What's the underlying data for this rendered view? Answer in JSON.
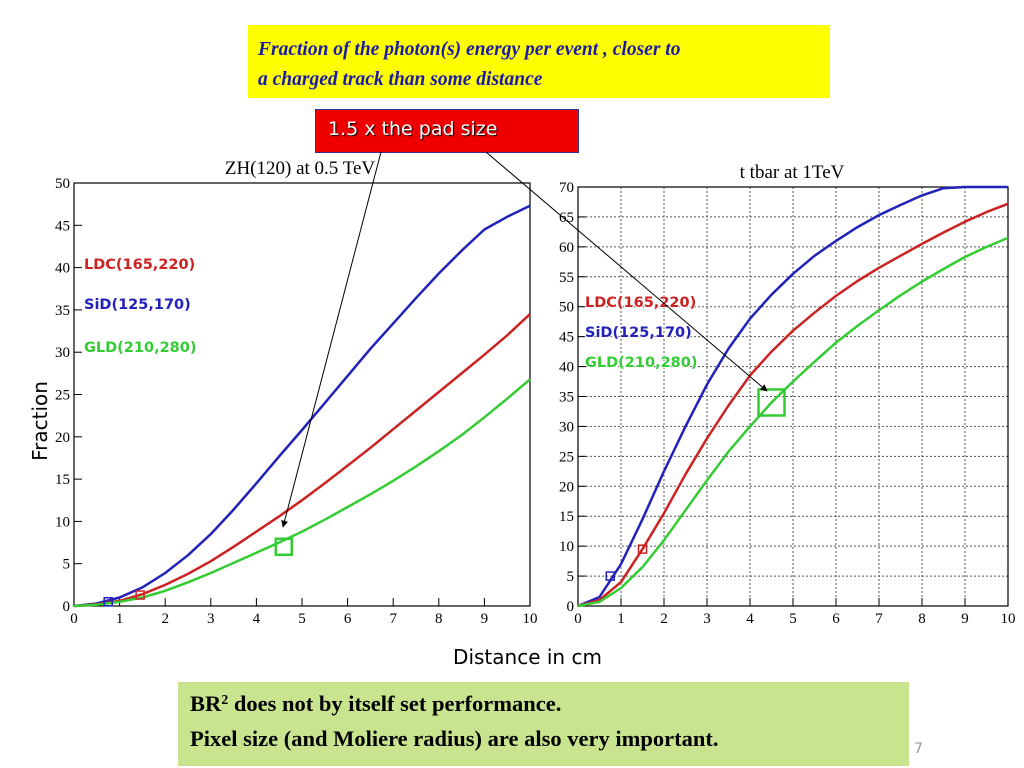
{
  "slide": {
    "header_line1": "Fraction of the photon(s) energy per event , closer to",
    "header_line2": "a charged track than some distance",
    "callout": "1.5 x the pad size",
    "x_axis_title": "Distance in cm",
    "y_axis_title": "Fraction",
    "footer_br": "BR",
    "footer_sup": "2",
    "footer_line1_rest": " does not by itself set performance.",
    "footer_line2": "Pixel size (and Moliere radius) are also very important.",
    "page_number": "7"
  },
  "chart_data": [
    {
      "type": "line",
      "title": "ZH(120) at 0.5 TeV",
      "xlim": [
        0,
        10
      ],
      "ylim": [
        0,
        50
      ],
      "xticks": [
        0,
        1,
        2,
        3,
        4,
        5,
        6,
        7,
        8,
        9,
        10
      ],
      "yticks": [
        0,
        5,
        10,
        15,
        20,
        25,
        30,
        35,
        40,
        45,
        50
      ],
      "grid": false,
      "legend_position": "left",
      "x": [
        0,
        0.5,
        1,
        1.5,
        2,
        2.5,
        3,
        3.5,
        4,
        4.5,
        5,
        5.5,
        6,
        6.5,
        7,
        7.5,
        8,
        8.5,
        9,
        9.5,
        10
      ],
      "series": [
        {
          "name": "SiD(125,170)",
          "color": "#2222bb",
          "values": [
            0,
            0.3,
            1,
            2.2,
            3.9,
            6,
            8.5,
            11.4,
            14.5,
            17.7,
            20.8,
            24,
            27.2,
            30.4,
            33.4,
            36.4,
            39.3,
            42,
            44.5,
            46,
            47.3
          ]
        },
        {
          "name": "LDC(165,220)",
          "color": "#cc2222",
          "values": [
            0,
            0.2,
            0.6,
            1.4,
            2.5,
            3.8,
            5.3,
            7,
            8.8,
            10.6,
            12.5,
            14.5,
            16.6,
            18.7,
            20.9,
            23.1,
            25.3,
            27.5,
            29.7,
            32,
            34.5
          ]
        },
        {
          "name": "GLD(210,280)",
          "color": "#33cc33",
          "values": [
            0,
            0.15,
            0.5,
            1,
            1.8,
            2.8,
            3.9,
            5.1,
            6.3,
            7.5,
            8.8,
            10.2,
            11.7,
            13.2,
            14.8,
            16.5,
            18.3,
            20.2,
            22.3,
            24.5,
            26.8
          ]
        }
      ],
      "markers": [
        {
          "series": "SiD(125,170)",
          "x": 0.75,
          "y": 0.5
        },
        {
          "series": "LDC(165,220)",
          "x": 1.45,
          "y": 1.3
        },
        {
          "series": "GLD(210,280)",
          "x": 4.6,
          "y": 7
        }
      ]
    },
    {
      "type": "line",
      "title": "t tbar at 1TeV",
      "xlim": [
        0,
        10
      ],
      "ylim": [
        0,
        70
      ],
      "xticks": [
        0,
        1,
        2,
        3,
        4,
        5,
        6,
        7,
        8,
        9,
        10
      ],
      "yticks": [
        0,
        5,
        10,
        15,
        20,
        25,
        30,
        35,
        40,
        45,
        50,
        55,
        60,
        65,
        70
      ],
      "grid": true,
      "legend_position": "left",
      "x": [
        0,
        0.5,
        1,
        1.5,
        2,
        2.5,
        3,
        3.5,
        4,
        4.5,
        5,
        5.5,
        6,
        6.5,
        7,
        7.5,
        8,
        8.5,
        9,
        9.5,
        10
      ],
      "series": [
        {
          "name": "SiD(125,170)",
          "color": "#2222bb",
          "values": [
            0,
            1.5,
            7,
            14.5,
            22.5,
            30,
            37,
            43,
            48,
            52,
            55.5,
            58.5,
            61,
            63.3,
            65.3,
            67,
            68.6,
            69.8,
            70,
            70,
            70
          ]
        },
        {
          "name": "LDC(165,220)",
          "color": "#cc2222",
          "values": [
            0,
            1,
            4,
            9.5,
            15.5,
            22,
            28,
            33.5,
            38.5,
            42.5,
            46,
            49,
            51.8,
            54.3,
            56.5,
            58.5,
            60.5,
            62.4,
            64.2,
            65.8,
            67.2
          ]
        },
        {
          "name": "GLD(210,280)",
          "color": "#33cc33",
          "values": [
            0,
            0.7,
            3,
            6.5,
            11,
            16,
            21,
            25.8,
            30,
            34,
            37.5,
            40.8,
            44,
            46.8,
            49.4,
            51.9,
            54.2,
            56.3,
            58.3,
            60,
            61.5
          ]
        }
      ],
      "markers": [
        {
          "series": "SiD(125,170)",
          "x": 0.75,
          "y": 5
        },
        {
          "series": "LDC(165,220)",
          "x": 1.5,
          "y": 9.5
        },
        {
          "series": "GLD(210,280)",
          "x": 4.5,
          "y": 34
        }
      ]
    }
  ]
}
